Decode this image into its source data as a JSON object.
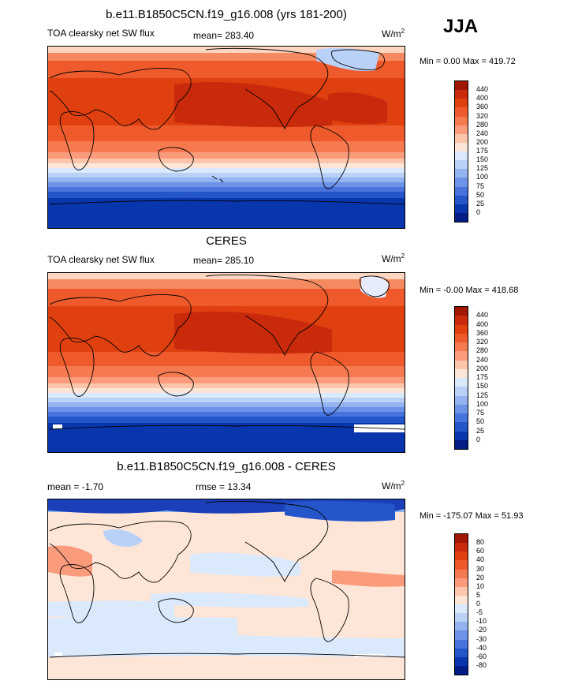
{
  "season": "JJA",
  "panels": [
    {
      "title": "b.e11.B1850C5CN.f19_g16.008 (yrs 181-200)",
      "left_label": "TOA clearsky net SW flux",
      "center_label": "mean= 283.40",
      "units_base": "W/m",
      "units_exp": "2",
      "minmax": "Min =   0.00 Max = 419.72"
    },
    {
      "title": "CERES",
      "left_label": "TOA clearsky net SW flux",
      "center_label": "mean= 285.10",
      "units_base": "W/m",
      "units_exp": "2",
      "minmax": "Min =  -0.00 Max = 418.68"
    },
    {
      "title": "b.e11.B1850C5CN.f19_g16.008 - CERES",
      "left_label": "mean =  -1.70",
      "center_label": "rmse =  13.34",
      "units_base": "W/m",
      "units_exp": "2",
      "minmax": "Min = -175.07 Max =  51.93"
    }
  ],
  "chart_data": [
    {
      "type": "heatmap",
      "variable": "TOA clearsky net SW flux",
      "mean": 283.4,
      "min": 0.0,
      "max": 419.72,
      "colorbar_levels": [
        "440",
        "400",
        "360",
        "320",
        "280",
        "240",
        "200",
        "175",
        "150",
        "125",
        "100",
        "75",
        "50",
        "25",
        "0"
      ],
      "colorbar_colors": [
        "#a21606",
        "#c92a0c",
        "#e0400f",
        "#ee5a2b",
        "#f57a4f",
        "#fa9c7c",
        "#fdc5aa",
        "#fde6d8",
        "#dbe9fc",
        "#b9d1f7",
        "#93b4f1",
        "#6c93e8",
        "#4873dd",
        "#2455c9",
        "#0a36ad",
        "#021d86"
      ]
    },
    {
      "type": "heatmap",
      "variable": "TOA clearsky net SW flux",
      "mean": 285.1,
      "min": -0.0,
      "max": 418.68,
      "colorbar_levels": [
        "440",
        "400",
        "360",
        "320",
        "280",
        "240",
        "200",
        "175",
        "150",
        "125",
        "100",
        "75",
        "50",
        "25",
        "0"
      ],
      "colorbar_colors": [
        "#a21606",
        "#c92a0c",
        "#e0400f",
        "#ee5a2b",
        "#f57a4f",
        "#fa9c7c",
        "#fdc5aa",
        "#fde6d8",
        "#dbe9fc",
        "#b9d1f7",
        "#93b4f1",
        "#6c93e8",
        "#4873dd",
        "#2455c9",
        "#0a36ad",
        "#021d86"
      ]
    },
    {
      "type": "heatmap",
      "mean": -1.7,
      "rmse": 13.34,
      "min": -175.07,
      "max": 51.93,
      "colorbar_levels": [
        "80",
        "60",
        "40",
        "30",
        "20",
        "10",
        "5",
        "0",
        "-5",
        "-10",
        "-20",
        "-30",
        "-40",
        "-60",
        "-80"
      ],
      "colorbar_colors": [
        "#a21606",
        "#c92a0c",
        "#e0400f",
        "#ee5a2b",
        "#f57a4f",
        "#fa9c7c",
        "#fdc5aa",
        "#fde6d8",
        "#dbe9fc",
        "#b9d1f7",
        "#93b4f1",
        "#6c93e8",
        "#4873dd",
        "#2455c9",
        "#0a36ad",
        "#021d86"
      ]
    }
  ]
}
